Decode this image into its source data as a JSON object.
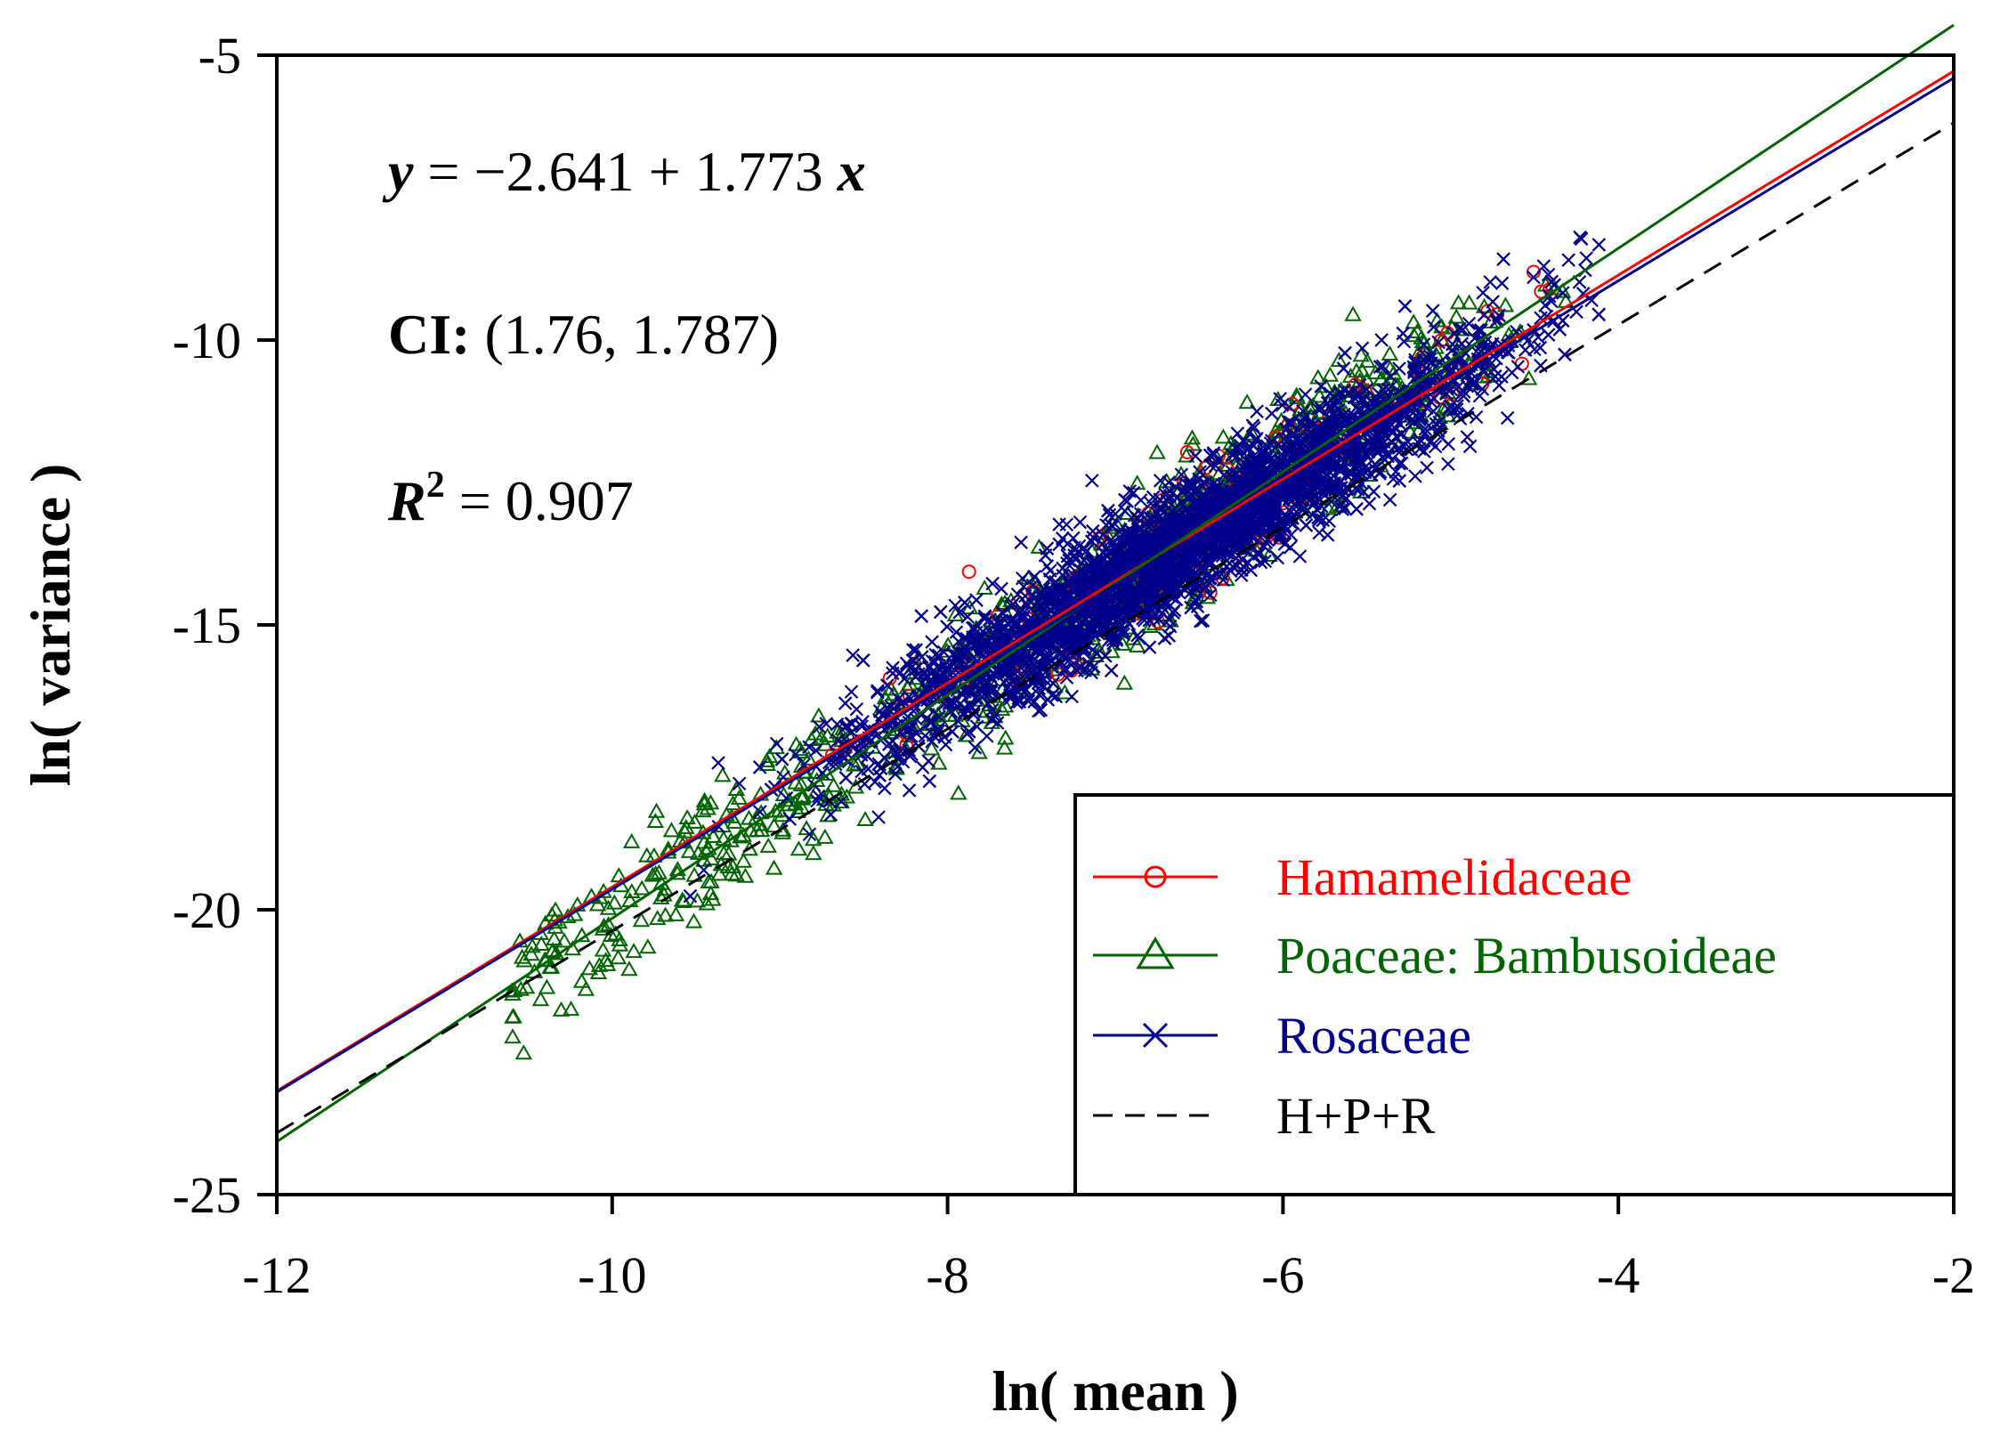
{
  "chart_data": {
    "type": "scatter",
    "title": "",
    "xlabel": "ln( mean )",
    "ylabel": "ln( variance )",
    "xlim": [
      -12,
      -2
    ],
    "ylim": [
      -25,
      -5
    ],
    "xticks": [
      -12,
      -10,
      -8,
      -6,
      -4,
      -2
    ],
    "xtick_labels": [
      "-12",
      "-10",
      "-8",
      "-6",
      "-4",
      "-2"
    ],
    "yticks": [
      -25,
      -20,
      -15,
      -10,
      -5
    ],
    "ytick_labels": [
      "-25",
      "-20",
      "-15",
      "-10",
      "-5"
    ],
    "grid": false,
    "legend_position": "bottom-right",
    "annotations": {
      "equation": {
        "y": "y",
        "eq": " = ",
        "intercept": "−2.641 + 1.773",
        "x": "x"
      },
      "ci": {
        "label": "CI:",
        "value": "(1.76, 1.787)"
      },
      "r2": {
        "label": "R",
        "sup": "2",
        "value": " = 0.907"
      }
    },
    "series": [
      {
        "name": "Hamamelidaceae",
        "color": "#ff0000",
        "marker": "circle",
        "fit": {
          "intercept": -1.7,
          "slope": 1.79
        },
        "x_range": [
          -8.9,
          -4.4
        ],
        "n_points": 180
      },
      {
        "name": "Poaceae: Bambusoideae",
        "color": "#006400",
        "marker": "triangle",
        "fit": {
          "intercept": -0.55,
          "slope": 1.96
        },
        "x_range": [
          -11.0,
          -4.3
        ],
        "n_points": 1100
      },
      {
        "name": "Rosaceae",
        "color": "#00008b",
        "marker": "x",
        "fit": {
          "intercept": -1.84,
          "slope": 1.78
        },
        "x_range": [
          -9.6,
          -4.1
        ],
        "n_points": 3500
      },
      {
        "name": "H+P+R",
        "color": "#000000",
        "marker": "none",
        "dashed": true,
        "fit": {
          "intercept": -2.641,
          "slope": 1.773
        }
      }
    ]
  }
}
